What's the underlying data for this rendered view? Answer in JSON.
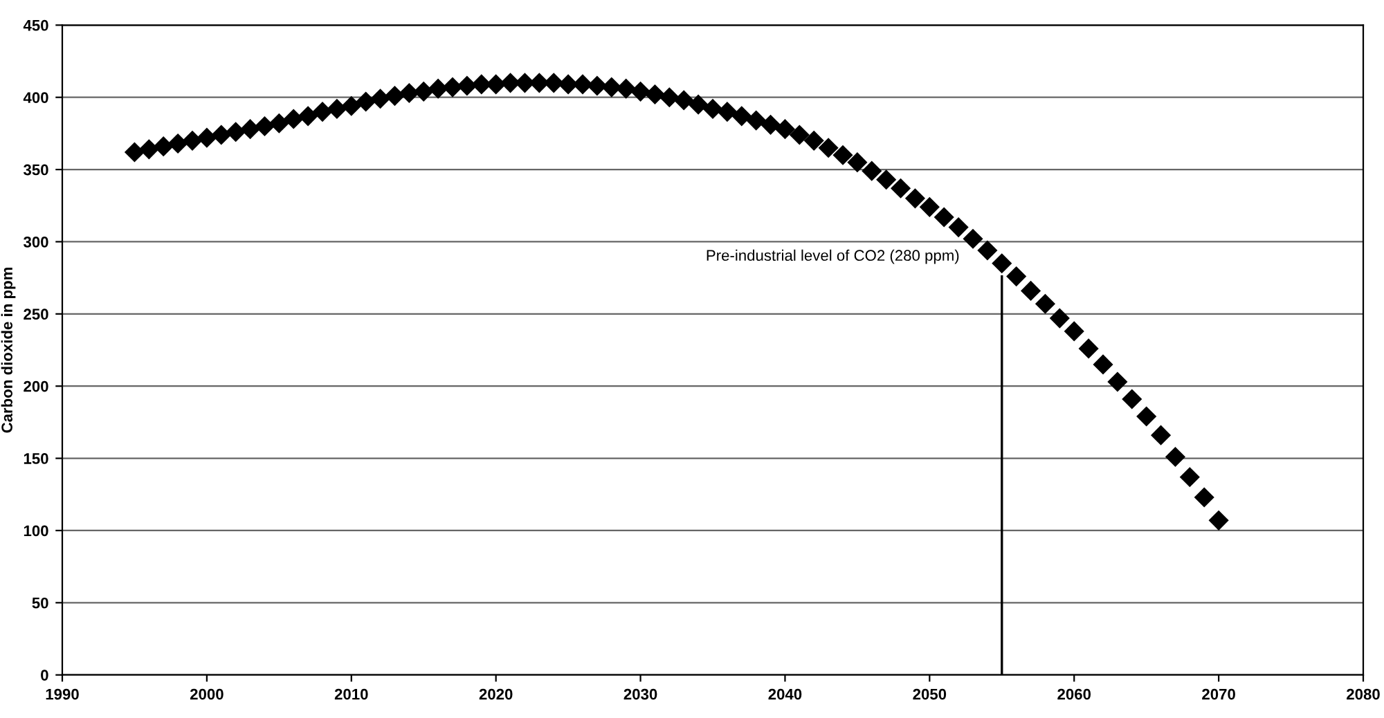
{
  "chart_data": {
    "type": "scatter",
    "ylabel": "Carbon dioxide in ppm",
    "xlim": [
      1990,
      2080
    ],
    "xticks": [
      1990,
      2000,
      2010,
      2020,
      2030,
      2040,
      2050,
      2060,
      2070,
      2080
    ],
    "ylim": [
      0,
      450
    ],
    "yticks": [
      0,
      50,
      100,
      150,
      200,
      250,
      300,
      350,
      400,
      450
    ],
    "grid": "y",
    "legend": false,
    "series": [
      {
        "marker": "diamond",
        "color": "#000000",
        "x": [
          1995,
          1996,
          1997,
          1998,
          1999,
          2000,
          2001,
          2002,
          2003,
          2004,
          2005,
          2006,
          2007,
          2008,
          2009,
          2010,
          2011,
          2012,
          2013,
          2014,
          2015,
          2016,
          2017,
          2018,
          2019,
          2020,
          2021,
          2022,
          2023,
          2024,
          2025,
          2026,
          2027,
          2028,
          2029,
          2030,
          2031,
          2032,
          2033,
          2034,
          2035,
          2036,
          2037,
          2038,
          2039,
          2040,
          2041,
          2042,
          2043,
          2044,
          2045,
          2046,
          2047,
          2048,
          2049,
          2050,
          2051,
          2052,
          2053,
          2054,
          2055,
          2056,
          2057,
          2058,
          2059,
          2060,
          2061,
          2062,
          2063,
          2064,
          2065,
          2066,
          2067,
          2068,
          2069,
          2070
        ],
        "values": [
          362,
          364,
          366,
          368,
          370,
          372,
          374,
          376,
          378,
          380,
          382,
          385,
          387,
          390,
          392,
          394,
          397,
          399,
          401,
          403,
          404,
          406,
          407,
          408,
          409,
          409,
          410,
          410,
          410,
          410,
          409,
          409,
          408,
          407,
          406,
          404,
          402,
          400,
          398,
          395,
          392,
          390,
          387,
          384,
          381,
          378,
          374,
          370,
          365,
          360,
          355,
          349,
          343,
          337,
          330,
          324,
          317,
          310,
          302,
          294,
          285,
          276,
          266,
          257,
          247,
          238,
          226,
          215,
          203,
          191,
          179,
          166,
          151,
          137,
          123,
          107
        ]
      },
      {
        "type": "line",
        "marker": "none",
        "color": "#000000",
        "x": [
          2055,
          2055
        ],
        "values": [
          0,
          276
        ]
      }
    ],
    "annotations": [
      {
        "text": "Pre-industrial level of CO2 (280 ppm)",
        "x": 2055,
        "y": 282
      }
    ]
  }
}
